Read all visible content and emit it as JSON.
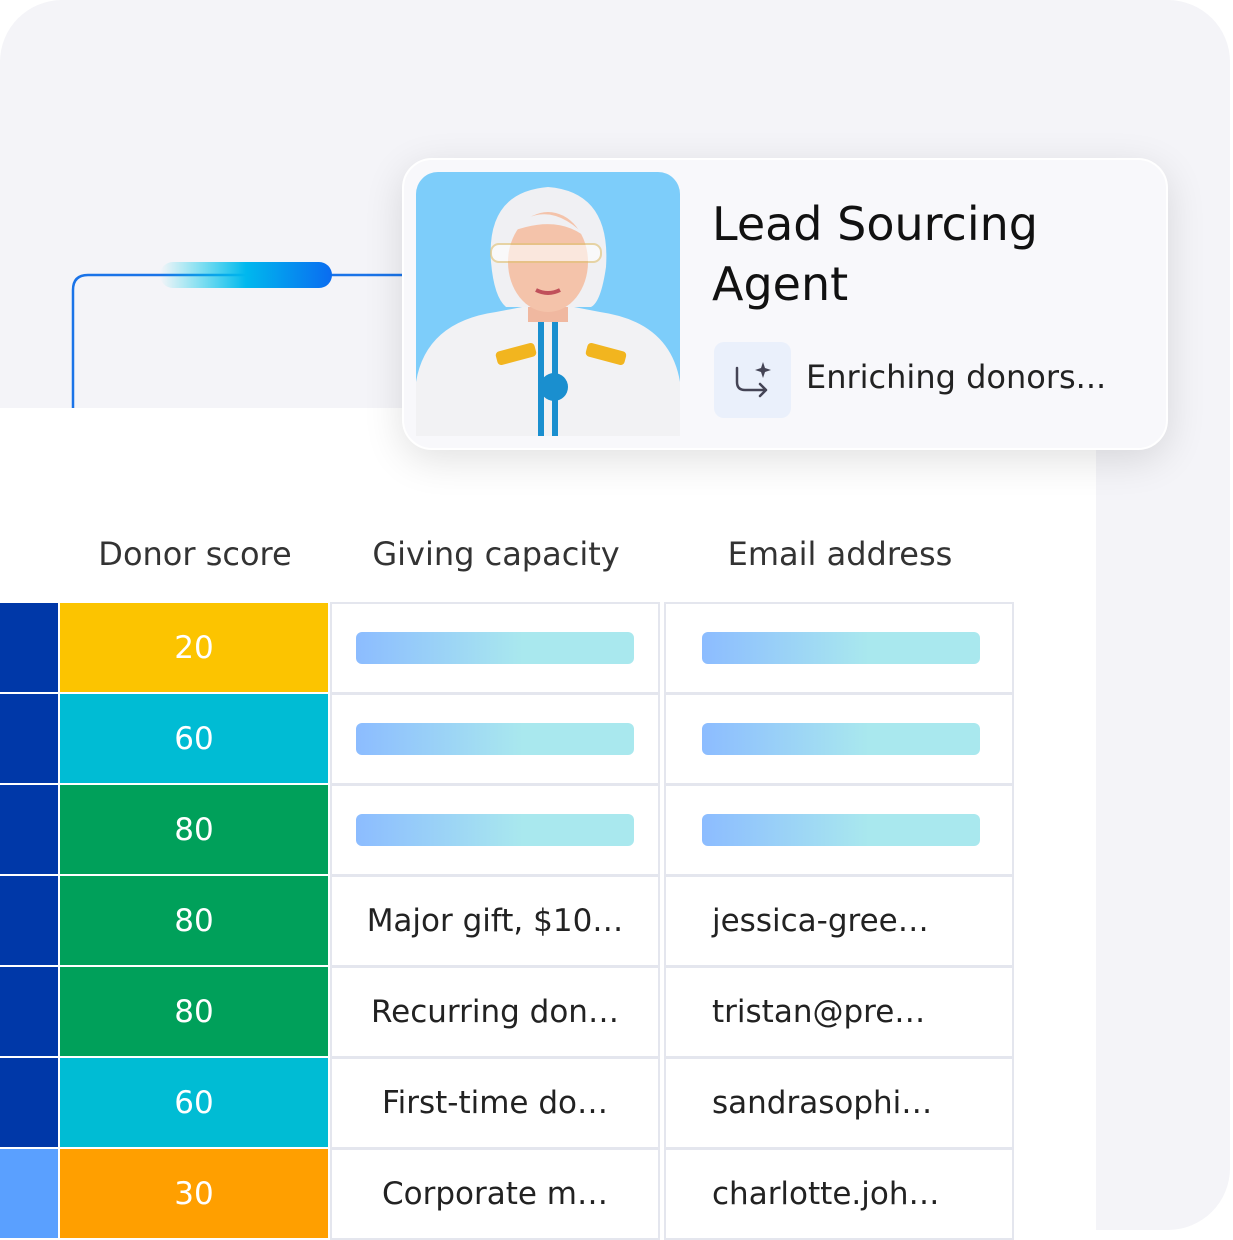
{
  "agent": {
    "title": "Lead Sourcing Agent",
    "status": "Enriching donors..."
  },
  "table": {
    "headers": [
      "Donor score",
      "Giving capacity",
      "Email address"
    ],
    "rows": [
      {
        "score": 20,
        "color": "#fcc400",
        "giving": null,
        "email": null
      },
      {
        "score": 60,
        "color": "#00bcd4",
        "giving": null,
        "email": null
      },
      {
        "score": 80,
        "color": "#00a05a",
        "giving": null,
        "email": null
      },
      {
        "score": 80,
        "color": "#00a05a",
        "giving": "Major gift, $10…",
        "email": "jessica-gree…"
      },
      {
        "score": 80,
        "color": "#00a05a",
        "giving": "Recurring don…",
        "email": "tristan@pre…"
      },
      {
        "score": 60,
        "color": "#00bcd4",
        "giving": "First-time do…",
        "email": "sandrasophi…"
      },
      {
        "score": 30,
        "color": "#ff9f00",
        "giving": "Corporate m…",
        "email": "charlotte.joh…"
      }
    ]
  }
}
